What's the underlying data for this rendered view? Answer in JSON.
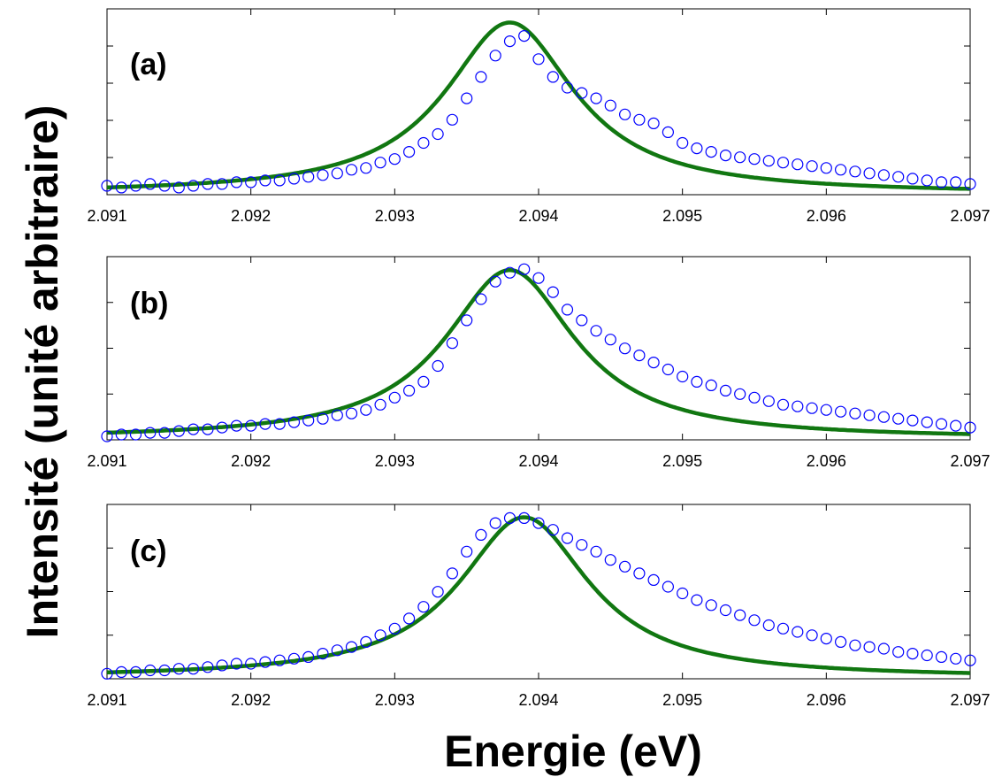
{
  "chart_data": {
    "type": "scatter",
    "xlabel": "Energie (eV)",
    "ylabel": "Intensité (unité arbitraire)",
    "colors": {
      "measured": "#0000ff",
      "fit": "#117711"
    },
    "panels": [
      {
        "label": "(a)",
        "xlim": [
          2.091,
          2.097
        ],
        "ylim": [
          0,
          1.0
        ],
        "xticks": [
          "2.091",
          "2.092",
          "2.093",
          "2.094",
          "2.095",
          "2.096",
          "2.097"
        ],
        "y_major_ticks": 4,
        "fit": {
          "center": 2.0938,
          "hwhm": 0.00055,
          "offset": -0.005,
          "amplitude": 0.96
        },
        "measured": {
          "x": [
            2.091,
            2.0911,
            2.0912,
            2.0913,
            2.0914,
            2.0915,
            2.0916,
            2.0917,
            2.0918,
            2.0919,
            2.092,
            2.0921,
            2.0922,
            2.0923,
            2.0924,
            2.0925,
            2.0926,
            2.0927,
            2.0928,
            2.0929,
            2.093,
            2.0931,
            2.0932,
            2.0933,
            2.0934,
            2.0935,
            2.0936,
            2.0937,
            2.0938,
            2.0939,
            2.094,
            2.0941,
            2.0942,
            2.0943,
            2.0944,
            2.0945,
            2.0946,
            2.0947,
            2.0948,
            2.0949,
            2.095,
            2.0951,
            2.0952,
            2.0953,
            2.0954,
            2.0955,
            2.0956,
            2.0957,
            2.0958,
            2.0959,
            2.096,
            2.0961,
            2.0962,
            2.0963,
            2.0964,
            2.0965,
            2.0966,
            2.0967,
            2.0968,
            2.0969,
            2.097
          ],
          "y": [
            0.05,
            0.04,
            0.05,
            0.06,
            0.05,
            0.04,
            0.05,
            0.06,
            0.06,
            0.07,
            0.07,
            0.08,
            0.08,
            0.09,
            0.1,
            0.11,
            0.12,
            0.14,
            0.15,
            0.18,
            0.2,
            0.24,
            0.29,
            0.34,
            0.42,
            0.54,
            0.66,
            0.78,
            0.86,
            0.89,
            0.76,
            0.66,
            0.6,
            0.57,
            0.54,
            0.5,
            0.45,
            0.42,
            0.4,
            0.35,
            0.29,
            0.26,
            0.24,
            0.22,
            0.21,
            0.2,
            0.19,
            0.18,
            0.17,
            0.16,
            0.15,
            0.14,
            0.13,
            0.12,
            0.11,
            0.1,
            0.09,
            0.08,
            0.07,
            0.07,
            0.06
          ]
        }
      },
      {
        "label": "(b)",
        "xlim": [
          2.091,
          2.097
        ],
        "ylim": [
          0,
          1.0
        ],
        "xticks": [
          "2.091",
          "2.092",
          "2.093",
          "2.094",
          "2.095",
          "2.096",
          "2.097"
        ],
        "y_major_ticks": 3,
        "fit": {
          "center": 2.0938,
          "hwhm": 0.00055,
          "offset": -0.005,
          "amplitude": 0.96
        },
        "measured": {
          "x": [
            2.091,
            2.0911,
            2.0912,
            2.0913,
            2.0914,
            2.0915,
            2.0916,
            2.0917,
            2.0918,
            2.0919,
            2.092,
            2.0921,
            2.0922,
            2.0923,
            2.0924,
            2.0925,
            2.0926,
            2.0927,
            2.0928,
            2.0929,
            2.093,
            2.0931,
            2.0932,
            2.0933,
            2.0934,
            2.0935,
            2.0936,
            2.0937,
            2.0938,
            2.0939,
            2.094,
            2.0941,
            2.0942,
            2.0943,
            2.0944,
            2.0945,
            2.0946,
            2.0947,
            2.0948,
            2.0949,
            2.095,
            2.0951,
            2.0952,
            2.0953,
            2.0954,
            2.0955,
            2.0956,
            2.0957,
            2.0958,
            2.0959,
            2.096,
            2.0961,
            2.0962,
            2.0963,
            2.0964,
            2.0965,
            2.0966,
            2.0967,
            2.0968,
            2.0969,
            2.097
          ],
          "y": [
            0.02,
            0.03,
            0.03,
            0.04,
            0.04,
            0.05,
            0.06,
            0.06,
            0.07,
            0.08,
            0.08,
            0.09,
            0.09,
            0.1,
            0.11,
            0.12,
            0.14,
            0.15,
            0.17,
            0.2,
            0.24,
            0.28,
            0.33,
            0.42,
            0.55,
            0.68,
            0.8,
            0.9,
            0.95,
            0.97,
            0.92,
            0.84,
            0.74,
            0.68,
            0.62,
            0.57,
            0.52,
            0.48,
            0.44,
            0.4,
            0.36,
            0.33,
            0.31,
            0.28,
            0.26,
            0.24,
            0.22,
            0.2,
            0.19,
            0.18,
            0.17,
            0.16,
            0.15,
            0.14,
            0.13,
            0.12,
            0.11,
            0.1,
            0.09,
            0.08,
            0.07
          ]
        }
      },
      {
        "label": "(c)",
        "xlim": [
          2.091,
          2.097
        ],
        "ylim": [
          0,
          1.0
        ],
        "xticks": [
          "2.091",
          "2.092",
          "2.093",
          "2.094",
          "2.095",
          "2.096",
          "2.097"
        ],
        "y_major_ticks": 3,
        "fit": {
          "center": 2.0939,
          "hwhm": 0.00055,
          "offset": -0.005,
          "amplitude": 0.96
        },
        "measured": {
          "x": [
            2.091,
            2.0911,
            2.0912,
            2.0913,
            2.0914,
            2.0915,
            2.0916,
            2.0917,
            2.0918,
            2.0919,
            2.092,
            2.0921,
            2.0922,
            2.0923,
            2.0924,
            2.0925,
            2.0926,
            2.0927,
            2.0928,
            2.0929,
            2.093,
            2.0931,
            2.0932,
            2.0933,
            2.0934,
            2.0935,
            2.0936,
            2.0937,
            2.0938,
            2.0939,
            2.094,
            2.0941,
            2.0942,
            2.0943,
            2.0944,
            2.0945,
            2.0946,
            2.0947,
            2.0948,
            2.0949,
            2.095,
            2.0951,
            2.0952,
            2.0953,
            2.0954,
            2.0955,
            2.0956,
            2.0957,
            2.0958,
            2.0959,
            2.096,
            2.0961,
            2.0962,
            2.0963,
            2.0964,
            2.0965,
            2.0966,
            2.0967,
            2.0968,
            2.0969,
            2.097
          ],
          "y": [
            0.03,
            0.04,
            0.04,
            0.05,
            0.05,
            0.06,
            0.06,
            0.07,
            0.08,
            0.09,
            0.09,
            0.1,
            0.11,
            0.12,
            0.13,
            0.15,
            0.17,
            0.19,
            0.22,
            0.26,
            0.3,
            0.36,
            0.43,
            0.52,
            0.63,
            0.76,
            0.86,
            0.93,
            0.96,
            0.96,
            0.93,
            0.89,
            0.84,
            0.8,
            0.76,
            0.71,
            0.67,
            0.63,
            0.59,
            0.55,
            0.51,
            0.47,
            0.44,
            0.41,
            0.38,
            0.35,
            0.32,
            0.3,
            0.28,
            0.26,
            0.24,
            0.22,
            0.2,
            0.19,
            0.18,
            0.16,
            0.15,
            0.14,
            0.13,
            0.12,
            0.11
          ]
        }
      }
    ]
  }
}
